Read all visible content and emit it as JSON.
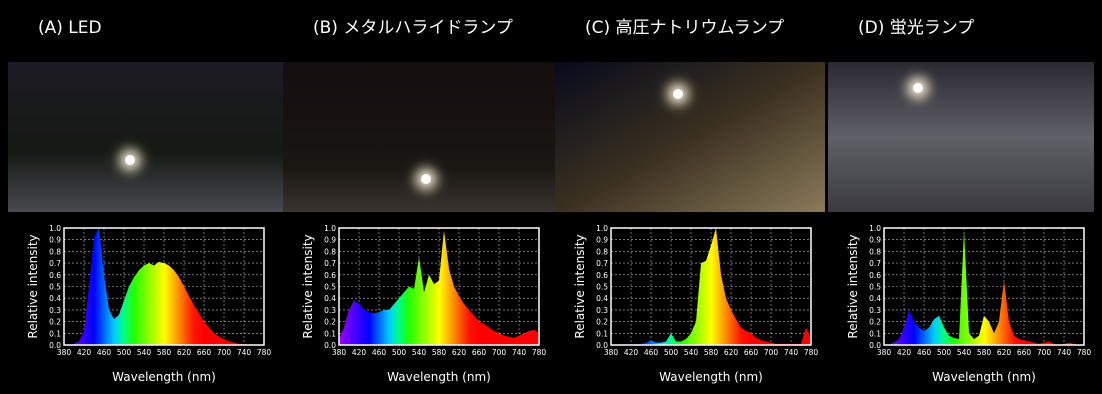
{
  "chart_data": [
    {
      "type": "area",
      "title": "(A) LED",
      "ylabel": "Relative intensity",
      "xlabel": "Wavelength (nm)",
      "x": [
        380,
        390,
        400,
        410,
        420,
        430,
        440,
        450,
        460,
        470,
        480,
        490,
        500,
        510,
        520,
        530,
        540,
        550,
        560,
        570,
        580,
        590,
        600,
        610,
        620,
        630,
        640,
        650,
        660,
        670,
        680,
        690,
        700,
        710,
        720,
        730,
        740,
        750,
        760,
        770,
        780
      ],
      "values": [
        0,
        0,
        0.01,
        0.03,
        0.12,
        0.5,
        0.92,
        1.0,
        0.6,
        0.3,
        0.22,
        0.26,
        0.38,
        0.5,
        0.58,
        0.64,
        0.68,
        0.7,
        0.68,
        0.71,
        0.7,
        0.68,
        0.64,
        0.58,
        0.5,
        0.42,
        0.34,
        0.27,
        0.2,
        0.15,
        0.1,
        0.07,
        0.05,
        0.03,
        0.02,
        0.01,
        0.01,
        0,
        0,
        0,
        0
      ],
      "xlim": [
        380,
        780
      ],
      "xticks": [
        380,
        420,
        460,
        500,
        540,
        580,
        620,
        660,
        700,
        740,
        780
      ],
      "ylim": [
        0,
        1
      ],
      "yticks": [
        {
          "value": 0,
          "label": "0.0"
        },
        0.1,
        0.2,
        0.3,
        0.4,
        0.5,
        0.6,
        0.7,
        0.8,
        0.9,
        {
          "value": 1,
          "label": "1.0"
        }
      ],
      "grid": true
    },
    {
      "type": "area",
      "title": "(B) メタルハライドランプ",
      "ylabel": "Relative intensity",
      "xlabel": "Wavelength (nm)",
      "x": [
        380,
        390,
        400,
        410,
        420,
        430,
        440,
        450,
        460,
        470,
        480,
        490,
        500,
        510,
        520,
        530,
        540,
        550,
        560,
        570,
        580,
        590,
        600,
        610,
        620,
        630,
        640,
        650,
        660,
        670,
        680,
        690,
        700,
        710,
        720,
        730,
        740,
        750,
        760,
        770,
        780
      ],
      "values": [
        0.05,
        0.15,
        0.3,
        0.38,
        0.35,
        0.3,
        0.28,
        0.27,
        0.28,
        0.3,
        0.3,
        0.35,
        0.4,
        0.45,
        0.5,
        0.48,
        0.75,
        0.45,
        0.6,
        0.52,
        0.55,
        0.98,
        0.65,
        0.5,
        0.42,
        0.35,
        0.3,
        0.25,
        0.2,
        0.18,
        0.15,
        0.12,
        0.1,
        0.08,
        0.07,
        0.06,
        0.08,
        0.1,
        0.12,
        0.13,
        0.1
      ],
      "xlim": [
        380,
        780
      ],
      "xticks": [
        380,
        420,
        460,
        500,
        540,
        580,
        620,
        660,
        700,
        740,
        780
      ],
      "ylim": [
        0,
        1
      ],
      "yticks": [
        {
          "value": 0,
          "label": "0.0"
        },
        0.1,
        0.2,
        0.3,
        0.4,
        0.5,
        0.6,
        0.7,
        0.8,
        0.9,
        {
          "value": 1,
          "label": "1.0"
        }
      ],
      "grid": true
    },
    {
      "type": "area",
      "title": "(C) 高圧ナトリウムランプ",
      "ylabel": "Relative intensity",
      "xlabel": "Wavelength (nm)",
      "x": [
        380,
        390,
        400,
        410,
        420,
        430,
        440,
        450,
        460,
        470,
        480,
        490,
        500,
        510,
        520,
        530,
        540,
        550,
        560,
        570,
        580,
        590,
        600,
        610,
        620,
        630,
        640,
        650,
        660,
        670,
        680,
        690,
        700,
        710,
        720,
        730,
        740,
        750,
        760,
        770,
        780
      ],
      "values": [
        0,
        0,
        0,
        0,
        0,
        0.01,
        0.01,
        0.02,
        0.04,
        0.02,
        0.02,
        0.03,
        0.1,
        0.03,
        0.03,
        0.05,
        0.1,
        0.2,
        0.7,
        0.72,
        0.85,
        1.0,
        0.6,
        0.4,
        0.3,
        0.22,
        0.15,
        0.12,
        0.1,
        0.06,
        0.04,
        0.03,
        0.02,
        0.01,
        0.01,
        0.01,
        0.01,
        0.01,
        0.01,
        0.15,
        0.05
      ],
      "xlim": [
        380,
        780
      ],
      "xticks": [
        380,
        420,
        460,
        500,
        540,
        580,
        620,
        660,
        700,
        740,
        780
      ],
      "ylim": [
        0,
        1
      ],
      "yticks": [
        {
          "value": 0,
          "label": "0.0"
        },
        0.1,
        0.2,
        0.3,
        0.4,
        0.5,
        0.6,
        0.7,
        0.8,
        0.9,
        {
          "value": 1,
          "label": "1.0"
        }
      ],
      "grid": true
    },
    {
      "type": "area",
      "title": "(D) 蛍光ランプ",
      "ylabel": "Relative intensity",
      "xlabel": "Wavelength (nm)",
      "x": [
        380,
        390,
        400,
        410,
        420,
        430,
        440,
        450,
        460,
        470,
        480,
        490,
        500,
        510,
        520,
        530,
        540,
        550,
        560,
        570,
        580,
        590,
        600,
        610,
        620,
        630,
        640,
        650,
        660,
        670,
        680,
        690,
        700,
        710,
        720,
        730,
        740,
        750,
        760,
        770,
        780
      ],
      "values": [
        0,
        0,
        0.02,
        0.05,
        0.15,
        0.3,
        0.2,
        0.15,
        0.12,
        0.15,
        0.22,
        0.25,
        0.15,
        0.08,
        0.06,
        0.05,
        0.98,
        0.1,
        0.05,
        0.08,
        0.25,
        0.2,
        0.1,
        0.2,
        0.55,
        0.2,
        0.08,
        0.05,
        0.04,
        0.03,
        0.02,
        0.01,
        0.02,
        0.03,
        0.01,
        0,
        0.01,
        0.02,
        0.01,
        0,
        0
      ],
      "xlim": [
        380,
        780
      ],
      "xticks": [
        380,
        420,
        460,
        500,
        540,
        580,
        620,
        660,
        700,
        740,
        780
      ],
      "ylim": [
        0,
        1
      ],
      "yticks": [
        {
          "value": 0,
          "label": "0.0"
        },
        0.1,
        0.2,
        0.3,
        0.4,
        0.5,
        0.6,
        0.7,
        0.8,
        0.9,
        {
          "value": 1,
          "label": "1.0"
        }
      ],
      "grid": true
    }
  ]
}
